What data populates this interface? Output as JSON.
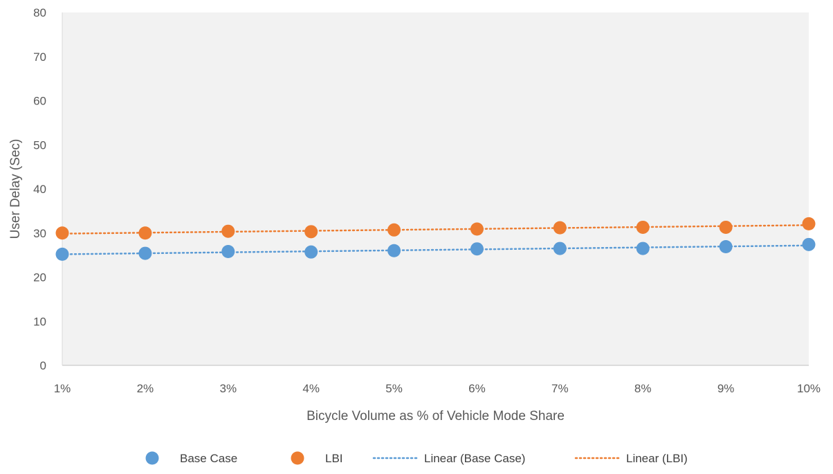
{
  "chart_data": {
    "type": "scatter",
    "title": "",
    "xlabel": "Bicycle Volume as % of Vehicle Mode Share",
    "ylabel": "User Delay (Sec)",
    "categories": [
      "1%",
      "2%",
      "3%",
      "4%",
      "5%",
      "6%",
      "7%",
      "8%",
      "9%",
      "10%"
    ],
    "ylim": [
      0,
      80
    ],
    "yticks": [
      "0",
      "10",
      "20",
      "30",
      "40",
      "50",
      "60",
      "70",
      "80"
    ],
    "grid": false,
    "legend_position": "bottom",
    "series": [
      {
        "name": "Base Case",
        "color": "#5B9BD5",
        "values": [
          25.2,
          25.4,
          25.8,
          25.7,
          26.0,
          26.4,
          26.5,
          26.5,
          26.9,
          27.4
        ]
      },
      {
        "name": "LBI",
        "color": "#ED7D31",
        "values": [
          30.0,
          30.0,
          30.4,
          30.3,
          30.7,
          30.9,
          31.2,
          31.3,
          31.3,
          32.1
        ]
      }
    ],
    "trendlines": [
      {
        "name": "Linear (Base Case)",
        "color": "#5B9BD5",
        "style": "dotted",
        "of_series": "Base Case"
      },
      {
        "name": "Linear (LBI)",
        "color": "#ED7D31",
        "style": "dotted",
        "of_series": "LBI"
      }
    ]
  }
}
